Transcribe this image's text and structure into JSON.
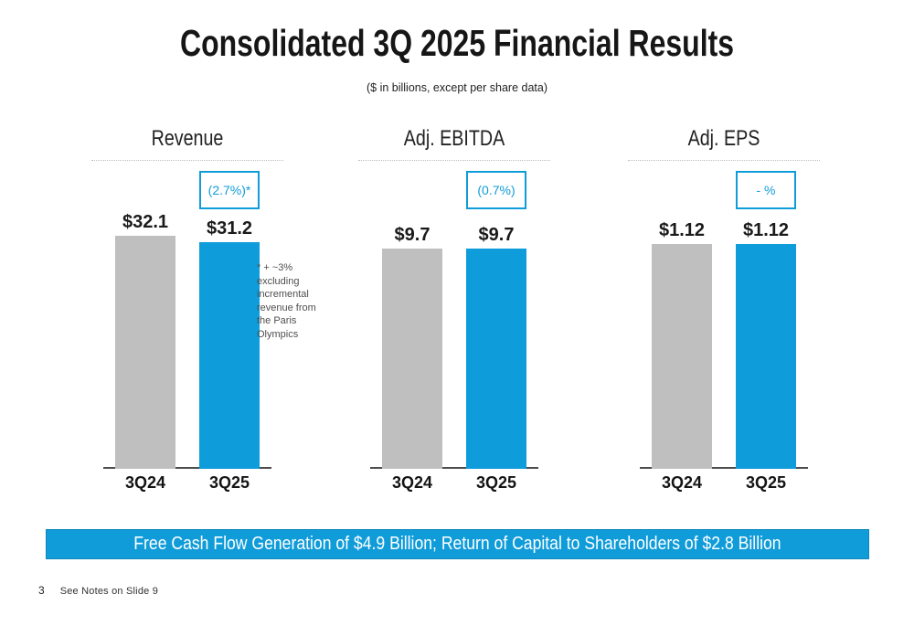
{
  "slide": {
    "title": "Consolidated 3Q 2025 Financial Results",
    "subtitle": "($ in billions, except per share data)",
    "banner_text": "Free Cash Flow Generation of $4.9 Billion; Return of Capital to Shareholders of $2.8 Billion",
    "page_number": "3",
    "footer_note": "See Notes on Slide 9"
  },
  "colors": {
    "accent_blue": "#109cd9",
    "banner_blue": "#109cd9",
    "bar_gray": "#bfbfbf",
    "bar_blue": "#0e9cda"
  },
  "chart_data": [
    {
      "type": "bar",
      "title": "Revenue",
      "categories": [
        "3Q24",
        "3Q25"
      ],
      "values": [
        32.1,
        31.2
      ],
      "value_labels": [
        "$32.1",
        "$31.2"
      ],
      "change_label": "(2.7%)*",
      "annotation": "* + ~3% excluding incremental revenue from the Paris Olympics",
      "bar_colors": [
        "#bfbfbf",
        "#0e9cda"
      ],
      "ylim": [
        0,
        32.1
      ],
      "grid": false,
      "legend": false
    },
    {
      "type": "bar",
      "title": "Adj. EBITDA",
      "categories": [
        "3Q24",
        "3Q25"
      ],
      "values": [
        9.7,
        9.7
      ],
      "value_labels": [
        "$9.7",
        "$9.7"
      ],
      "change_label": "(0.7%)",
      "bar_colors": [
        "#bfbfbf",
        "#0e9cda"
      ],
      "ylim": [
        0,
        9.7
      ],
      "grid": false,
      "legend": false
    },
    {
      "type": "bar",
      "title": "Adj. EPS",
      "categories": [
        "3Q24",
        "3Q25"
      ],
      "values": [
        1.12,
        1.12
      ],
      "value_labels": [
        "$1.12",
        "$1.12"
      ],
      "change_label": "- %",
      "bar_colors": [
        "#bfbfbf",
        "#0e9cda"
      ],
      "ylim": [
        0,
        1.12
      ],
      "grid": false,
      "legend": false
    }
  ]
}
